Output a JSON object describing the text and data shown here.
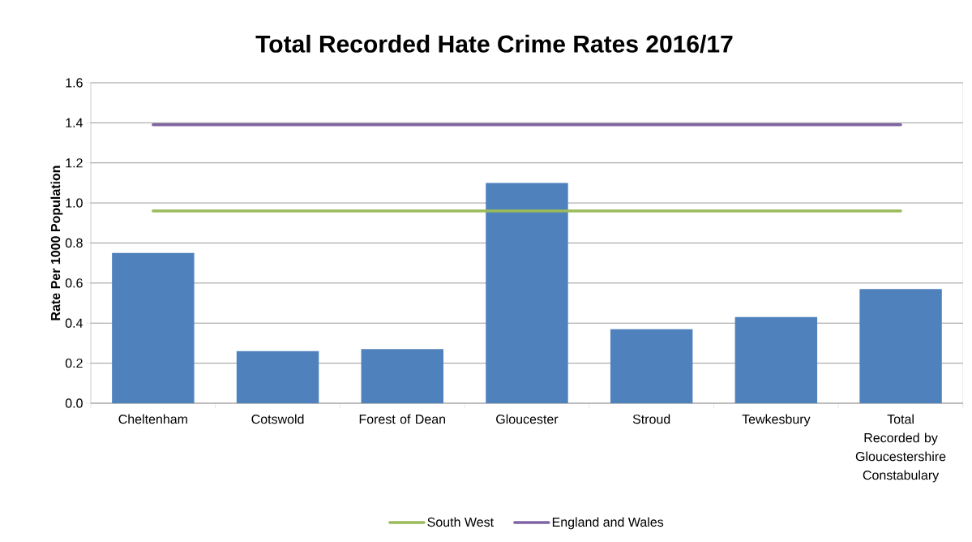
{
  "chart_data": {
    "type": "bar",
    "title": "Total Recorded Hate Crime Rates 2016/17",
    "ylabel": "Rate Per 1000 Population",
    "categories": [
      "Cheltenham",
      "Cotswold",
      "Forest of Dean",
      "Gloucester",
      "Stroud",
      "Tewkesbury",
      "Total Recorded by Gloucestershire Constabulary"
    ],
    "series": [
      {
        "color": "#4f81bd",
        "values": [
          0.75,
          0.26,
          0.27,
          1.1,
          0.37,
          0.43,
          0.57
        ]
      },
      {
        "type": "line",
        "name": "South West",
        "color": "#9bbb59",
        "values": [
          0.96,
          0.96,
          0.96,
          0.96,
          0.96,
          0.96,
          0.96
        ]
      },
      {
        "type": "line",
        "name": "England and Wales",
        "color": "#8064a2",
        "values": [
          1.39,
          1.39,
          1.39,
          1.39,
          1.39,
          1.39,
          1.39
        ]
      }
    ],
    "ylim": [
      0,
      1.6
    ],
    "yticks": [
      {
        "value": 0,
        "label": "0.0"
      },
      {
        "value": 0.2,
        "label": "0.2"
      },
      {
        "value": 0.4,
        "label": "0.4"
      },
      {
        "value": 0.6,
        "label": "0.6"
      },
      {
        "value": 0.8,
        "label": "0.8"
      },
      {
        "value": 1.0,
        "label": "1.0"
      },
      {
        "value": 1.2,
        "label": "1.2"
      },
      {
        "value": 1.4,
        "label": "1.4"
      },
      {
        "value": 1.6,
        "label": "1.6"
      }
    ],
    "grid": "y",
    "legend": "bottom",
    "marker": "none"
  }
}
